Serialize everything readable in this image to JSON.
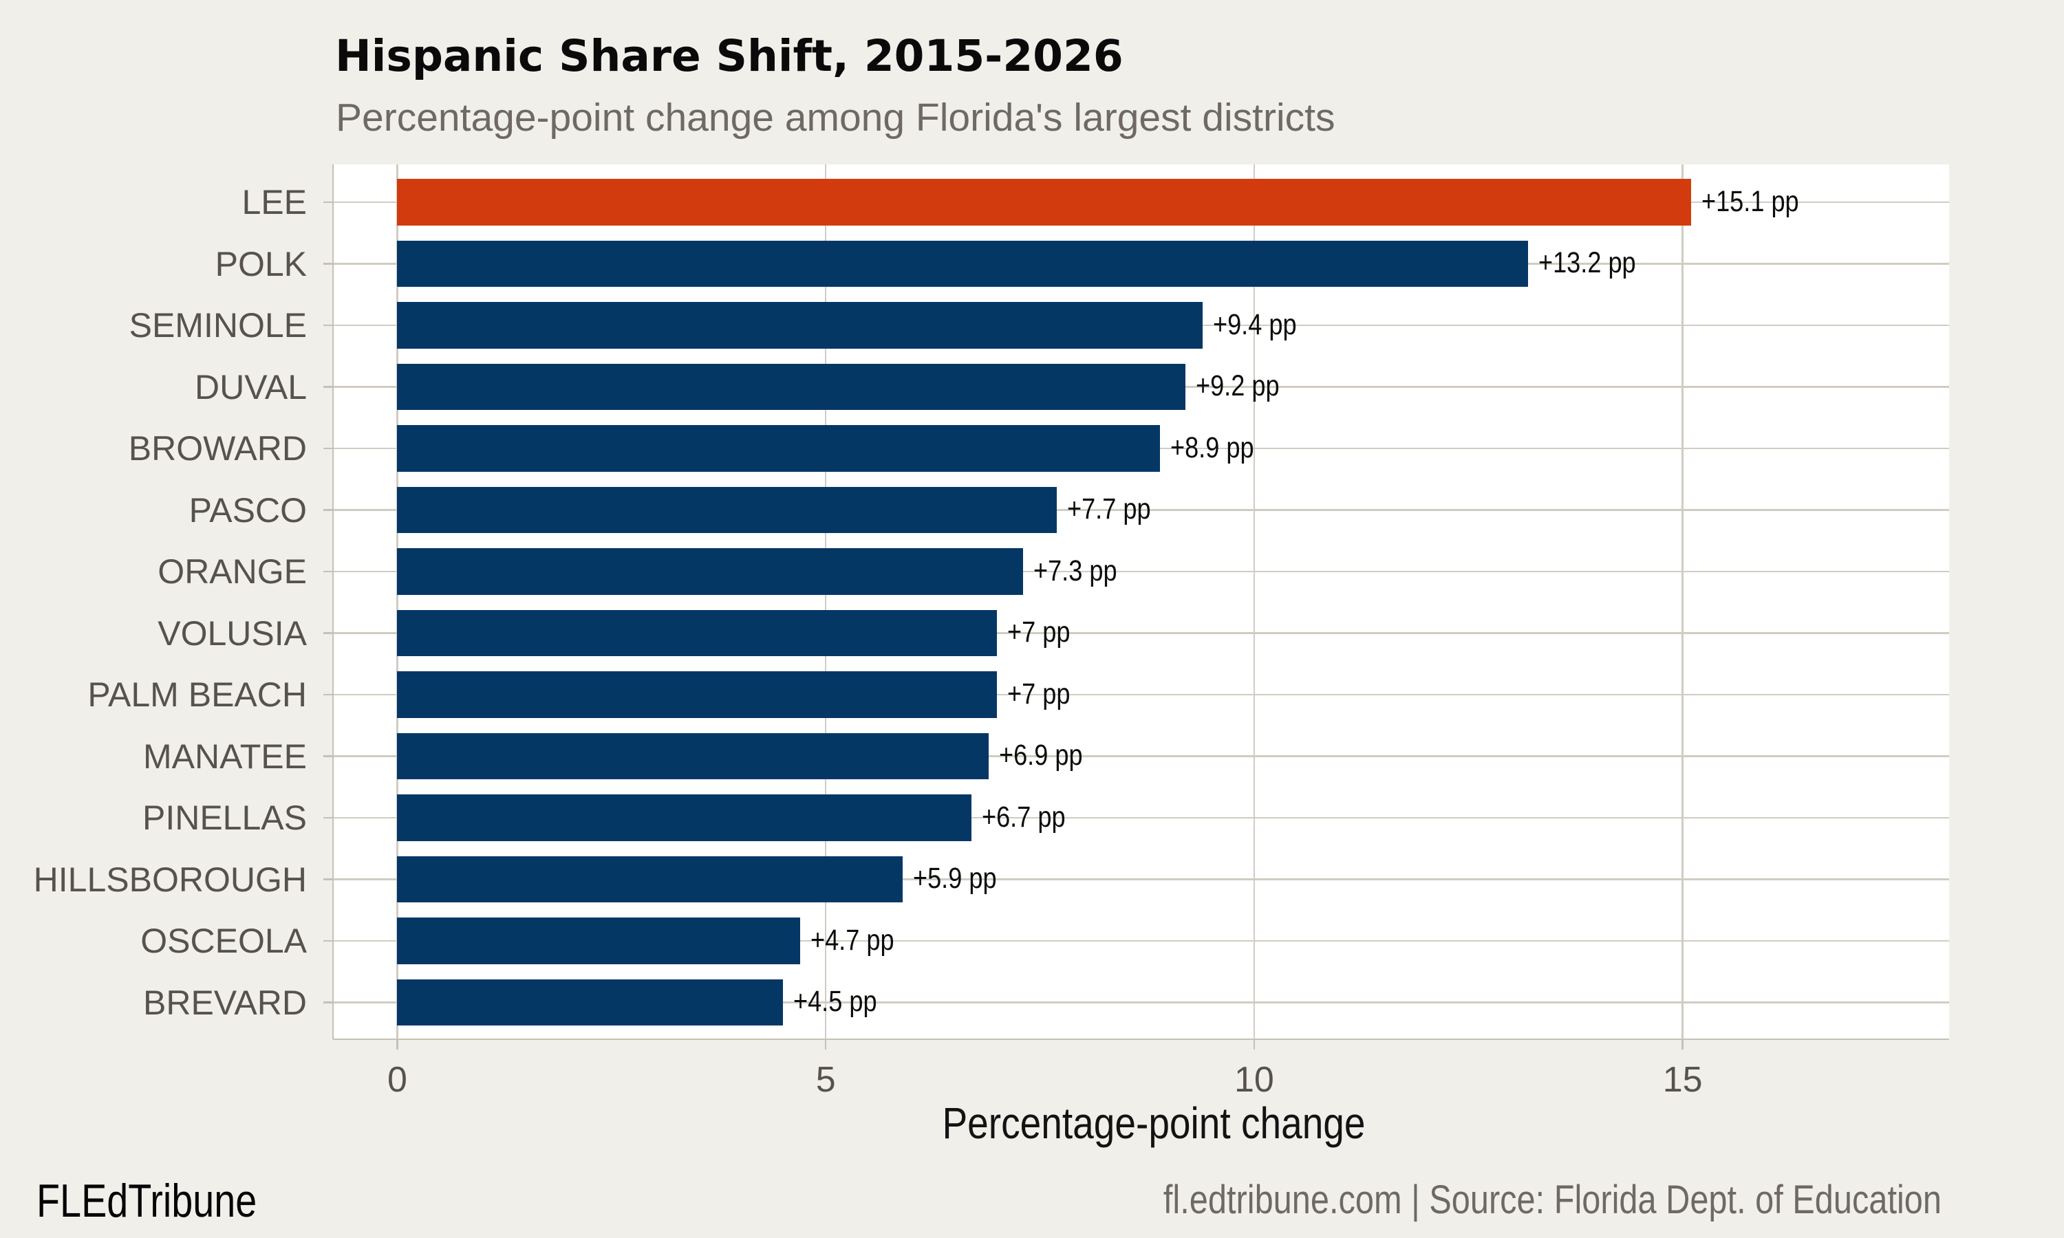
{
  "chart_data": {
    "type": "bar",
    "orientation": "horizontal",
    "title": "Hispanic Share Shift, 2015-2026",
    "subtitle": "Percentage-point change among Florida's largest districts",
    "xlabel": "Percentage-point change",
    "x_ticks": [
      0,
      5,
      10,
      15
    ],
    "x_tick_labels": [
      "0",
      "5",
      "10",
      "15"
    ],
    "xlim": [
      -0.75,
      18.11
    ],
    "grid": "on",
    "legend": "none",
    "categories": [
      "LEE",
      "POLK",
      "SEMINOLE",
      "DUVAL",
      "BROWARD",
      "PASCO",
      "ORANGE",
      "VOLUSIA",
      "PALM BEACH",
      "MANATEE",
      "PINELLAS",
      "HILLSBOROUGH",
      "OSCEOLA",
      "BREVARD"
    ],
    "values": [
      15.1,
      13.2,
      9.4,
      9.2,
      8.9,
      7.7,
      7.3,
      7.0,
      7.0,
      6.9,
      6.7,
      5.9,
      4.7,
      4.5
    ],
    "value_labels": [
      "+15.1 pp",
      "+13.2 pp",
      "+9.4 pp",
      "+9.2 pp",
      "+8.9 pp",
      "+7.7 pp",
      "+7.3 pp",
      "+7 pp",
      "+7 pp",
      "+6.9 pp",
      "+6.7 pp",
      "+5.9 pp",
      "+4.7 pp",
      "+4.5 pp"
    ],
    "highlighted_category": "LEE",
    "colors": {
      "bar": "#053765",
      "highlight_bar": "#d13b0e",
      "background": "#f1efe9",
      "panel_background": "#ffffff",
      "gridline": "#d1ccc2",
      "axis_line": "#c6c1b6",
      "axis_text": "#57524c",
      "value_label_text": "#0c0c0c",
      "title_text": "#0a0a0a",
      "subtitle_text": "#6e6a63"
    }
  },
  "footer": {
    "brand": "FLEdTribune",
    "source": "fl.edtribune.com | Source: Florida Dept. of Education"
  }
}
